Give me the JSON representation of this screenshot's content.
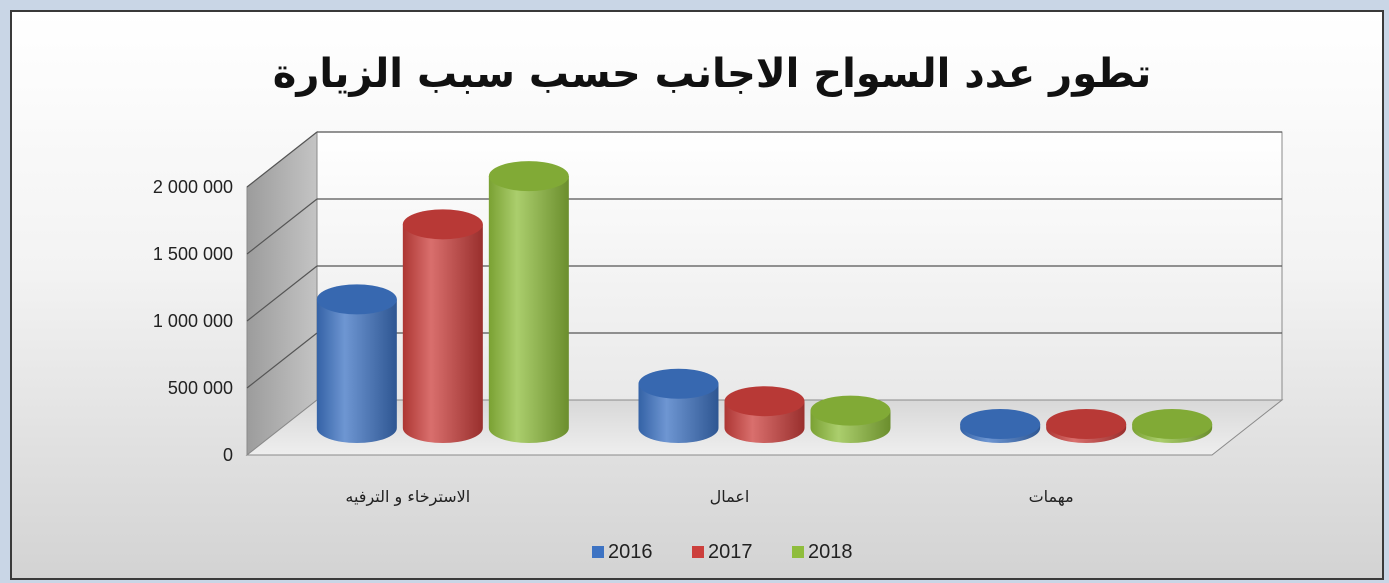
{
  "chart_data": {
    "type": "bar",
    "title": "تطور عدد السواح الاجانب حسب سبب الزيارة",
    "categories": [
      "الاسترخاء و الترفيه",
      "اعمال",
      "مهمات"
    ],
    "series": [
      {
        "name": "2016",
        "color": "#3d73c3",
        "values": [
          960000,
          330000,
          30000
        ]
      },
      {
        "name": "2017",
        "color": "#cc3f3c",
        "values": [
          1520000,
          200000,
          30000
        ]
      },
      {
        "name": "2018",
        "color": "#8fbd3c",
        "values": [
          1880000,
          130000,
          30000
        ]
      }
    ],
    "yticks": [
      "0",
      "500 000",
      "1 000 000",
      "1 500 000",
      "2 000 000"
    ],
    "ylim": [
      0,
      2000000
    ],
    "xlabel": "",
    "ylabel": "",
    "grid": true,
    "legend_position": "bottom",
    "style": "3d-cylinder"
  }
}
